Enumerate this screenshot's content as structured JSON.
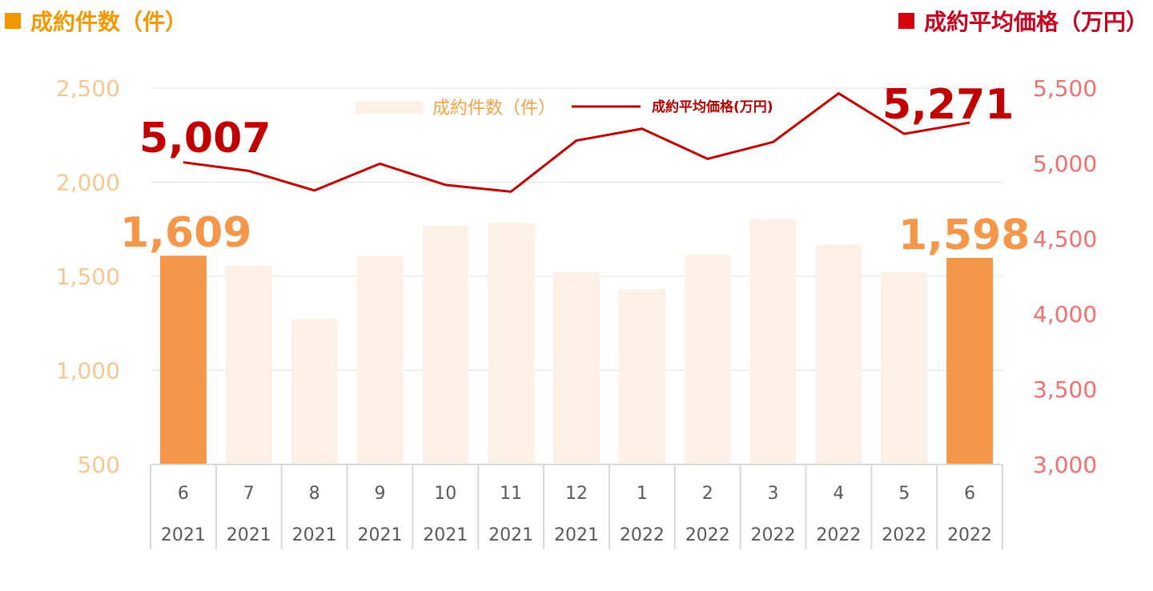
{
  "header": {
    "left_title": "成約件数（件）",
    "right_title": "成約平均価格（万円）"
  },
  "colors": {
    "bar_highlight": "#f5974a",
    "bar_normal": "#fdf0e6",
    "line": "#c00000",
    "left_axis": "#f8c790",
    "right_axis": "#f07070"
  },
  "chart_data": {
    "type": "bar+line",
    "categories": [
      {
        "month": "6",
        "year": "2021"
      },
      {
        "month": "7",
        "year": "2021"
      },
      {
        "month": "8",
        "year": "2021"
      },
      {
        "month": "9",
        "year": "2021"
      },
      {
        "month": "10",
        "year": "2021"
      },
      {
        "month": "11",
        "year": "2021"
      },
      {
        "month": "12",
        "year": "2021"
      },
      {
        "month": "1",
        "year": "2022"
      },
      {
        "month": "2",
        "year": "2022"
      },
      {
        "month": "3",
        "year": "2022"
      },
      {
        "month": "4",
        "year": "2022"
      },
      {
        "month": "5",
        "year": "2022"
      },
      {
        "month": "6",
        "year": "2022"
      }
    ],
    "series": [
      {
        "name": "成約件数（件）",
        "type": "bar",
        "axis": "left",
        "values": [
          1609,
          1555,
          1272,
          1608,
          1768,
          1783,
          1523,
          1432,
          1617,
          1805,
          1667,
          1520,
          1598
        ],
        "highlight": [
          true,
          false,
          false,
          false,
          false,
          false,
          false,
          false,
          false,
          false,
          false,
          false,
          true
        ]
      },
      {
        "name": "成約平均価格(万円)",
        "type": "line",
        "axis": "right",
        "values": [
          5007,
          4950,
          4820,
          4998,
          4857,
          4812,
          5152,
          5230,
          5030,
          5142,
          5465,
          5196,
          5271
        ]
      }
    ],
    "left_axis": {
      "min": 500,
      "max": 2500,
      "ticks": [
        "500",
        "1,000",
        "1,500",
        "2,000",
        "2,500"
      ],
      "values": [
        500,
        1000,
        1500,
        2000,
        2500
      ]
    },
    "right_axis": {
      "min": 3000,
      "max": 5500,
      "ticks": [
        "3,000",
        "3,500",
        "4,000",
        "4,500",
        "5,000",
        "5,500"
      ],
      "values": [
        3000,
        3500,
        4000,
        4500,
        5000,
        5500
      ]
    },
    "annotations": {
      "bar_first": "1,609",
      "bar_last": "1,598",
      "line_first": "5,007",
      "line_last": "5,271"
    },
    "legend": {
      "bar_label": "成約件数（件）",
      "line_label": "成約平均価格(万円)",
      "position": "top"
    },
    "grid": true
  }
}
